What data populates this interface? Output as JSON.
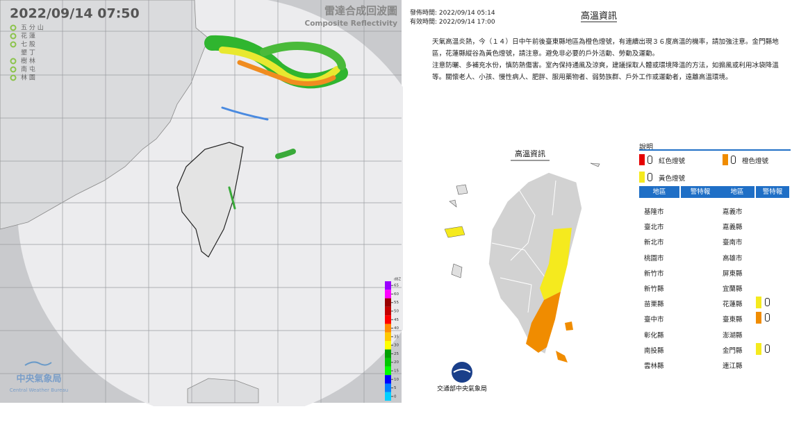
{
  "radar": {
    "timestamp": "2022/09/14  07:50",
    "title": "雷達合成回波圖",
    "subtitle": "Composite Reflectivity",
    "stations": [
      {
        "name": "五 分 山",
        "color": "#8bc34a"
      },
      {
        "name": "花 蓮",
        "color": "#8bc34a"
      },
      {
        "name": "七 股",
        "color": "#8bc34a"
      },
      {
        "name": "墾 丁",
        "color": "#dddddd"
      },
      {
        "name": "樹 林",
        "color": "#8bc34a"
      },
      {
        "name": "南 屯",
        "color": "#8bc34a"
      },
      {
        "name": "林 園",
        "color": "#8bc34a"
      }
    ],
    "colorbar": {
      "label": "dBZ",
      "ticks": [
        65,
        60,
        55,
        50,
        45,
        40,
        35,
        30,
        25,
        20,
        15,
        10,
        5,
        0
      ],
      "colors": [
        "#9a00ff",
        "#ff00ff",
        "#990000",
        "#c40000",
        "#ff0000",
        "#ff8c00",
        "#ffc800",
        "#ffff00",
        "#00a000",
        "#00c800",
        "#00ff00",
        "#0000ff",
        "#0080ff",
        "#00d0ff"
      ]
    },
    "agency": "中央氣象局",
    "agency_en": "Central Weather Bureau"
  },
  "heat": {
    "issued": "發佈時間: 2022/09/14 05:14",
    "valid": "有效時間: 2022/09/14 17:00",
    "title": "高溫資訊",
    "paragraphs": [
      "天氣高溫炎熱，今（１４）日中午前後臺東縣地區為橙色燈號，有連續出現３６度高溫的機率，請加強注意。金門縣地區，花蓮縣縱谷為黃色燈號，請注意。避免非必要的戶外活動、勞動及運動。",
      "注意防曬、多補充水份，慎防熱傷害。室內保持通風及涼爽，建議採取人體或環境降溫的方法，如搧風或利用冰袋降溫等。關懷老人、小孩、慢性病人、肥胖、服用藥物者、弱勢族群、戶外工作或運動者，遠離高溫環境。"
    ],
    "map_title": "高溫資訊",
    "legend_title": "說明",
    "legend": [
      {
        "label": "紅色燈號",
        "color": "#e60000"
      },
      {
        "label": "橙色燈號",
        "color": "#f08c00"
      },
      {
        "label": "黃色燈號",
        "color": "#f5ea1e"
      }
    ],
    "headers": [
      "地區",
      "警特報",
      "地區",
      "警特報"
    ],
    "left": [
      {
        "area": "基隆市"
      },
      {
        "area": "臺北市"
      },
      {
        "area": "新北市"
      },
      {
        "area": "桃園市"
      },
      {
        "area": "新竹市"
      },
      {
        "area": "新竹縣"
      },
      {
        "area": "苗栗縣"
      },
      {
        "area": "臺中市"
      },
      {
        "area": "彰化縣"
      },
      {
        "area": "南投縣"
      },
      {
        "area": "雲林縣"
      }
    ],
    "right": [
      {
        "area": "嘉義市"
      },
      {
        "area": "嘉義縣"
      },
      {
        "area": "臺南市"
      },
      {
        "area": "高雄市"
      },
      {
        "area": "屏東縣"
      },
      {
        "area": "宜蘭縣"
      },
      {
        "area": "花蓮縣",
        "color": "#f5ea1e"
      },
      {
        "area": "臺東縣",
        "color": "#f08c00"
      },
      {
        "area": "澎湖縣"
      },
      {
        "area": "金門縣",
        "color": "#f5ea1e"
      },
      {
        "area": "連江縣"
      }
    ],
    "footer": "交通部中央氣象局"
  }
}
